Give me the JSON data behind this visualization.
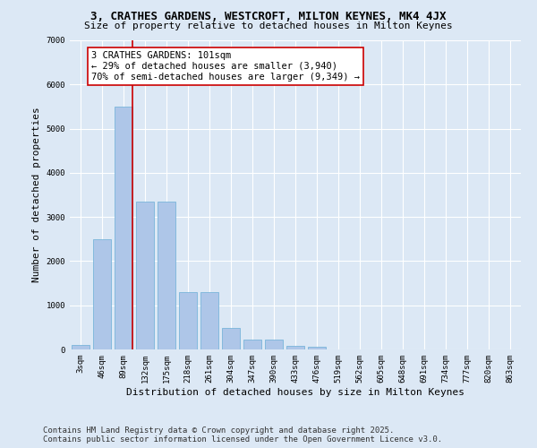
{
  "title_line1": "3, CRATHES GARDENS, WESTCROFT, MILTON KEYNES, MK4 4JX",
  "title_line2": "Size of property relative to detached houses in Milton Keynes",
  "xlabel": "Distribution of detached houses by size in Milton Keynes",
  "ylabel": "Number of detached properties",
  "categories": [
    "3sqm",
    "46sqm",
    "89sqm",
    "132sqm",
    "175sqm",
    "218sqm",
    "261sqm",
    "304sqm",
    "347sqm",
    "390sqm",
    "433sqm",
    "476sqm",
    "519sqm",
    "562sqm",
    "605sqm",
    "648sqm",
    "691sqm",
    "734sqm",
    "777sqm",
    "820sqm",
    "863sqm"
  ],
  "bar_values": [
    100,
    2500,
    5500,
    3350,
    3350,
    1300,
    1300,
    480,
    220,
    220,
    90,
    60,
    0,
    0,
    0,
    0,
    0,
    0,
    0,
    0,
    0
  ],
  "bar_color": "#aec6e8",
  "bar_edge_color": "#6aaed6",
  "bg_color": "#dce8f5",
  "grid_color": "#ffffff",
  "vline_color": "#cc0000",
  "annotation_text": "3 CRATHES GARDENS: 101sqm\n← 29% of detached houses are smaller (3,940)\n70% of semi-detached houses are larger (9,349) →",
  "annotation_box_color": "#ffffff",
  "annotation_box_edge": "#cc0000",
  "ylim": [
    0,
    7000
  ],
  "yticks": [
    0,
    1000,
    2000,
    3000,
    4000,
    5000,
    6000,
    7000
  ],
  "footer_line1": "Contains HM Land Registry data © Crown copyright and database right 2025.",
  "footer_line2": "Contains public sector information licensed under the Open Government Licence v3.0.",
  "title_fontsize": 9,
  "subtitle_fontsize": 8,
  "axis_label_fontsize": 8,
  "tick_fontsize": 6.5,
  "annotation_fontsize": 7.5,
  "footer_fontsize": 6.5
}
